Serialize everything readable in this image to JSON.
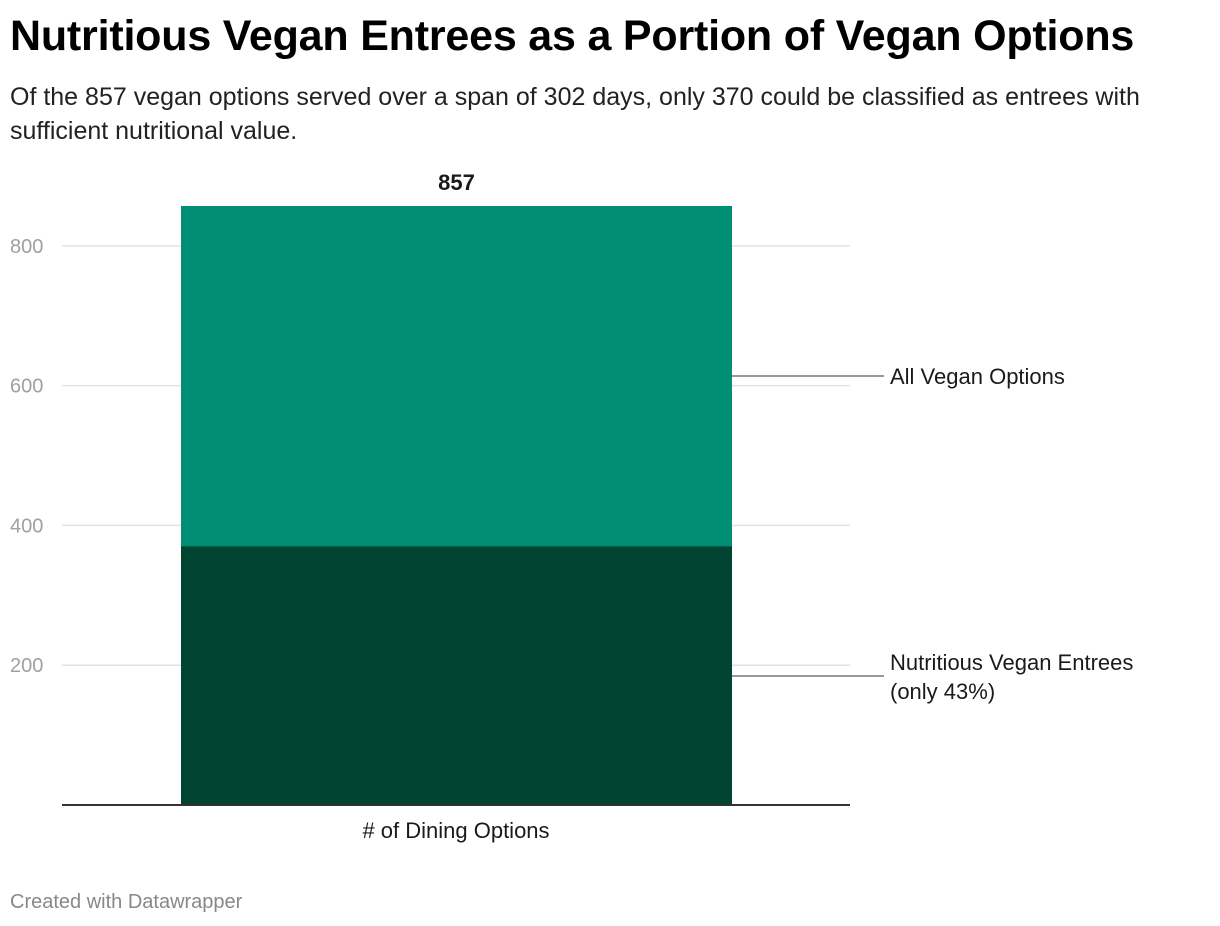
{
  "header": {
    "title": "Nutritious Vegan Entrees as a Portion of Vegan Options",
    "subtitle": "Of the 857 vegan options served over a span of 302 days, only 370 could be classified as entrees with sufficient nutritional value."
  },
  "footer": {
    "credit": "Created with Datawrapper"
  },
  "colors": {
    "all_vegan": "#008f74",
    "nutritious": "#014431",
    "gridline": "#e2e2e2",
    "baseline": "#333333",
    "leader": "#999999"
  },
  "chart_data": {
    "type": "bar",
    "stacked": false,
    "overlapping": true,
    "categories": [
      "# of Dining Options"
    ],
    "series": [
      {
        "name": "All Vegan Options",
        "label_lines": [
          "All Vegan Options"
        ],
        "values": [
          857
        ],
        "color": "#008f74"
      },
      {
        "name": "Nutritious Vegan Entrees (only 43%)",
        "label_lines": [
          "Nutritious Vegan Entrees",
          "(only 43%)"
        ],
        "values": [
          370
        ],
        "color": "#014431"
      }
    ],
    "total_label": "857",
    "yticks": [
      200,
      400,
      600,
      800
    ],
    "ytick_labels": [
      "200",
      "400",
      "600",
      "800"
    ],
    "ylim": [
      0,
      857
    ],
    "grid": true,
    "xlabel": "",
    "ylabel": "",
    "legend": "inline-right"
  }
}
